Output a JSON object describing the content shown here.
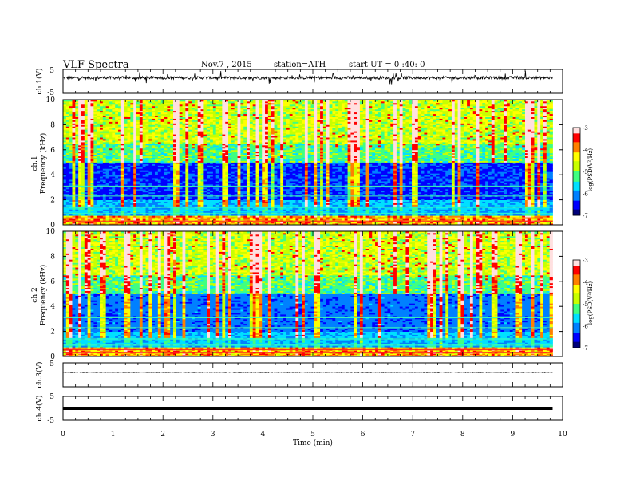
{
  "header": {
    "title": "VLF  Spectra",
    "date": "Nov.7  , 2015",
    "station": "station=ATH",
    "start": "start  UT  =   0 :40: 0"
  },
  "chart_data": [
    {
      "type": "line",
      "panel": "ch1-waveform",
      "ylabel": "ch.1(V)",
      "ylim": [
        -5,
        5
      ],
      "yticks": [
        "5",
        "-5"
      ],
      "baseline_v": 1.5
    },
    {
      "type": "heatmap",
      "panel": "ch1-spectrogram",
      "ylabel_top": "ch.1",
      "ylabel": "Frequency  (kHz)",
      "ylim": [
        0,
        10
      ],
      "yticks": [
        "0",
        "2",
        "4",
        "6",
        "8",
        "10"
      ],
      "colorbar": {
        "label": "log(PSD(V²/Hz)",
        "range": [
          -7,
          -3
        ],
        "ticks": [
          "-3",
          "-4",
          "-5",
          "-6",
          "-7"
        ]
      },
      "description_levels": {
        "low_freq_band_khz": [
          0,
          1
        ],
        "quiet_band_khz": [
          2,
          5
        ],
        "impulsive_band_khz": [
          5,
          10
        ]
      }
    },
    {
      "type": "heatmap",
      "panel": "ch2-spectrogram",
      "ylabel_top": "ch.2",
      "ylabel": "Frequency  (kHz)",
      "ylim": [
        0,
        10
      ],
      "yticks": [
        "0",
        "2",
        "4",
        "6",
        "8",
        "10"
      ],
      "colorbar": {
        "label": "log(PSD(V²/Hz)",
        "range": [
          -7,
          -3
        ],
        "ticks": [
          "-3",
          "-4",
          "-5",
          "-6",
          "-7"
        ]
      }
    },
    {
      "type": "line",
      "panel": "ch3-waveform",
      "ylabel": "ch.3(V)",
      "ylim": [
        -5,
        5
      ],
      "yticks": [
        "5",
        "-5"
      ],
      "baseline_v": 1.0
    },
    {
      "type": "line",
      "panel": "ch4-waveform",
      "ylabel": "ch.4(V)",
      "ylim": [
        -5,
        5
      ],
      "yticks": [
        "5",
        "-5"
      ],
      "baseline_v": 0.0
    }
  ],
  "xaxis": {
    "label": "Time  (min)",
    "range": [
      0,
      10
    ],
    "data_end": 9.8,
    "ticks": [
      "0",
      "1",
      "2",
      "3",
      "4",
      "5",
      "6",
      "7",
      "8",
      "9",
      "10"
    ]
  },
  "colors": {
    "colormap": [
      "#00007a",
      "#0000ff",
      "#0080ff",
      "#00e0ff",
      "#40ff80",
      "#c8ff00",
      "#ffff00",
      "#ff8000",
      "#ff0000",
      "#ffe0e0"
    ]
  }
}
